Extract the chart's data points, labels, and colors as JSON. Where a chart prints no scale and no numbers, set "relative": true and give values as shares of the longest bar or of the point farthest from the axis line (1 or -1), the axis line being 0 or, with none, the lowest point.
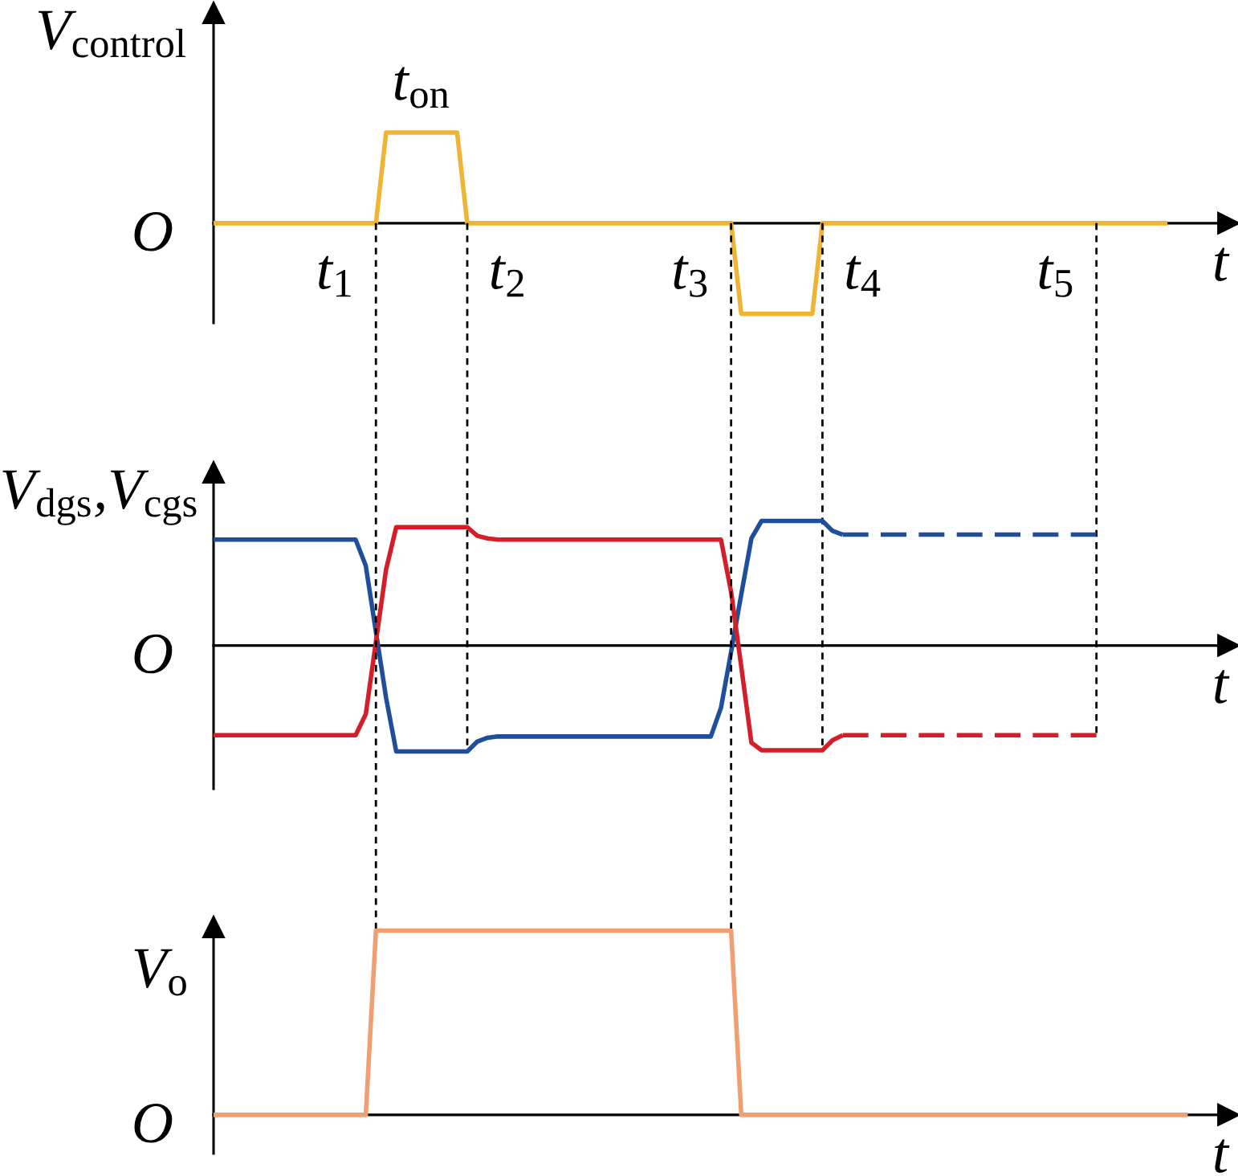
{
  "chart_data": [
    {
      "type": "line",
      "relative": true,
      "ylabel": "V$_{control}$",
      "xlabel": "t",
      "tick_labels": "x",
      "categories": [
        null,
        null,
        null,
        null,
        null,
        null,
        null,
        null,
        null,
        null,
        null,
        null,
        "t$_{1}$",
        null,
        null,
        null,
        null,
        null,
        null,
        null,
        null,
        null,
        null,
        null,
        null,
        null,
        null,
        null,
        null,
        "t$_{2}$",
        null,
        null,
        null,
        null,
        null,
        null,
        null,
        null,
        null,
        null,
        null,
        null,
        null,
        null,
        null,
        null,
        null,
        "t$_{3}$",
        null,
        null,
        null,
        null,
        null,
        null,
        null,
        null,
        null,
        null,
        null,
        null,
        null,
        null,
        null,
        null,
        "t$_{4}$",
        null,
        null,
        null,
        null,
        null,
        null,
        null,
        null,
        null,
        null,
        null,
        null,
        null,
        null,
        null,
        null,
        null,
        null,
        "t$_{5}$",
        null,
        null,
        null,
        null,
        null,
        null,
        null,
        null,
        null,
        null,
        null,
        null,
        null
      ],
      "series": [
        {
          "color": "#efb436",
          "values": [
            0,
            0,
            0,
            0,
            0,
            0,
            0,
            0,
            0,
            0,
            0,
            0,
            0,
            0,
            0,
            0,
            0,
            1,
            1,
            1,
            1,
            1,
            1,
            1,
            1,
            0,
            0,
            0,
            0,
            0,
            0,
            0,
            0,
            0,
            0,
            0,
            0,
            0,
            0,
            0,
            0,
            0,
            0,
            0,
            0,
            0,
            0,
            0,
            0,
            0,
            0,
            0,
            -1,
            -1,
            -1,
            -1,
            -1,
            -1,
            -1,
            -1,
            0,
            0,
            0,
            0,
            0,
            0,
            0,
            0,
            0,
            0,
            0,
            0,
            0,
            0,
            0,
            0,
            0,
            0,
            0,
            0,
            0,
            0,
            0,
            0,
            0,
            0,
            0,
            0,
            0,
            0,
            0,
            0,
            0,
            0,
            0,
            null,
            null
          ]
        }
      ],
      "annotations": [
        "O",
        {
          "text": "t$_{on}$",
          "y": 1
        }
      ]
    },
    {
      "type": "line",
      "relative": true,
      "ylabel": "V$_{dgs}$,V$_{cgs}$",
      "xlabel": "t",
      "categories": [
        null,
        null,
        null,
        null,
        null,
        null,
        null,
        null,
        null,
        null,
        null,
        null,
        null,
        null,
        null,
        null,
        null,
        null,
        null,
        null,
        null,
        null,
        null,
        null,
        null,
        null,
        null,
        null,
        null,
        null,
        null,
        null,
        null,
        null,
        null,
        null,
        null,
        null,
        null,
        null,
        null,
        null,
        null,
        null,
        null,
        null,
        null,
        null,
        null,
        null,
        null,
        null,
        null,
        null,
        null,
        null,
        null,
        null,
        null,
        null,
        null,
        null,
        null,
        null,
        null,
        null,
        null,
        null,
        null,
        null,
        null,
        null,
        null,
        null,
        null,
        null,
        null,
        null,
        null,
        null,
        null,
        null,
        null,
        null,
        null,
        null,
        null,
        null,
        null,
        null,
        null,
        null,
        null,
        null,
        null,
        null,
        null
      ],
      "series": [
        {
          "color": "#1f4e9b",
          "line_style": "solid",
          "values": [
            0.85,
            0.85,
            0.85,
            0.85,
            0.85,
            0.85,
            0.85,
            0.85,
            0.85,
            0.85,
            0.85,
            0.85,
            0.85,
            0.85,
            0.85,
            0.64,
            0.11,
            -0.42,
            -0.85,
            -0.85,
            -0.85,
            -0.85,
            -0.85,
            -0.85,
            -0.85,
            -0.85,
            -0.77,
            -0.74,
            -0.73,
            -0.73,
            -0.73,
            -0.73,
            -0.73,
            -0.73,
            -0.73,
            -0.73,
            -0.73,
            -0.73,
            -0.73,
            -0.73,
            -0.73,
            -0.73,
            -0.73,
            -0.73,
            -0.73,
            -0.73,
            -0.73,
            -0.73,
            -0.73,
            -0.73,
            -0.5,
            -0.05,
            0.41,
            0.86,
            1.0,
            1.0,
            1.0,
            1.0,
            1.0,
            1.0,
            1.0,
            0.92,
            0.89,
            null,
            null,
            null,
            null,
            null,
            null,
            null,
            null,
            null,
            null,
            null,
            null,
            null,
            null,
            null,
            null,
            null,
            null,
            null,
            null,
            null,
            null,
            null,
            null,
            null,
            null,
            null,
            null,
            null,
            null,
            null,
            null,
            null,
            null
          ]
        },
        {
          "color": "#1f4e9b",
          "line_style": "dashed",
          "values": [
            null,
            null,
            null,
            null,
            null,
            null,
            null,
            null,
            null,
            null,
            null,
            null,
            null,
            null,
            null,
            null,
            null,
            null,
            null,
            null,
            null,
            null,
            null,
            null,
            null,
            null,
            null,
            null,
            null,
            null,
            null,
            null,
            null,
            null,
            null,
            null,
            null,
            null,
            null,
            null,
            null,
            null,
            null,
            null,
            null,
            null,
            null,
            null,
            null,
            null,
            null,
            null,
            null,
            null,
            null,
            null,
            null,
            null,
            null,
            null,
            null,
            null,
            0.89,
            0.89,
            0.89,
            0.89,
            0.89,
            0.89,
            0.89,
            0.89,
            0.89,
            0.89,
            0.89,
            0.89,
            0.89,
            0.89,
            0.89,
            0.89,
            0.89,
            0.89,
            0.89,
            0.89,
            0.89,
            0.89,
            0.89,
            0.89,
            0.89,
            0.89,
            null,
            null,
            null,
            null,
            null,
            null,
            null,
            null,
            null
          ]
        },
        {
          "color": "#d41f2b",
          "line_style": "solid",
          "values": [
            -0.72,
            -0.72,
            -0.72,
            -0.72,
            -0.72,
            -0.72,
            -0.72,
            -0.72,
            -0.72,
            -0.72,
            -0.72,
            -0.72,
            -0.72,
            -0.72,
            -0.72,
            -0.55,
            0.03,
            0.61,
            0.95,
            0.95,
            0.95,
            0.95,
            0.95,
            0.95,
            0.95,
            0.95,
            0.88,
            0.86,
            0.85,
            0.85,
            0.85,
            0.85,
            0.85,
            0.85,
            0.85,
            0.85,
            0.85,
            0.85,
            0.85,
            0.85,
            0.85,
            0.85,
            0.85,
            0.85,
            0.85,
            0.85,
            0.85,
            0.85,
            0.85,
            0.85,
            0.85,
            0.43,
            -0.17,
            -0.78,
            -0.84,
            -0.84,
            -0.84,
            -0.84,
            -0.84,
            -0.84,
            -0.84,
            -0.76,
            -0.72,
            null,
            null,
            null,
            null,
            null,
            null,
            null,
            null,
            null,
            null,
            null,
            null,
            null,
            null,
            null,
            null,
            null,
            null,
            null,
            null,
            null,
            null,
            null,
            null,
            null,
            null,
            null,
            null,
            null,
            null,
            null,
            null,
            null,
            null
          ]
        },
        {
          "color": "#d41f2b",
          "line_style": "dashed",
          "values": [
            null,
            null,
            null,
            null,
            null,
            null,
            null,
            null,
            null,
            null,
            null,
            null,
            null,
            null,
            null,
            null,
            null,
            null,
            null,
            null,
            null,
            null,
            null,
            null,
            null,
            null,
            null,
            null,
            null,
            null,
            null,
            null,
            null,
            null,
            null,
            null,
            null,
            null,
            null,
            null,
            null,
            null,
            null,
            null,
            null,
            null,
            null,
            null,
            null,
            null,
            null,
            null,
            null,
            null,
            null,
            null,
            null,
            null,
            null,
            null,
            null,
            null,
            -0.72,
            -0.72,
            -0.72,
            -0.72,
            -0.72,
            -0.72,
            -0.72,
            -0.72,
            -0.72,
            -0.72,
            -0.72,
            -0.72,
            -0.72,
            -0.72,
            -0.72,
            -0.72,
            -0.72,
            -0.72,
            -0.72,
            -0.72,
            -0.72,
            -0.72,
            -0.72,
            -0.72,
            -0.72,
            -0.72,
            null,
            null,
            null,
            null,
            null,
            null,
            null,
            null,
            null
          ]
        }
      ],
      "annotations": [
        "O"
      ]
    },
    {
      "type": "line",
      "relative": true,
      "ylabel": "V$_{o}$",
      "xlabel": "t",
      "categories": [
        null,
        null,
        null,
        null,
        null,
        null,
        null,
        null,
        null,
        null,
        null,
        null,
        null,
        null,
        null,
        null,
        null,
        null,
        null,
        null,
        null,
        null,
        null,
        null,
        null,
        null,
        null,
        null,
        null,
        null,
        null,
        null,
        null,
        null,
        null,
        null,
        null,
        null,
        null,
        null,
        null,
        null,
        null,
        null,
        null,
        null,
        null,
        null,
        null,
        null,
        null,
        null,
        null,
        null,
        null,
        null,
        null,
        null,
        null,
        null,
        null,
        null,
        null,
        null,
        null,
        null,
        null,
        null,
        null,
        null,
        null,
        null,
        null,
        null,
        null,
        null,
        null,
        null,
        null,
        null,
        null,
        null,
        null,
        null,
        null,
        null,
        null,
        null,
        null,
        null,
        null,
        null,
        null,
        null,
        null,
        null,
        null
      ],
      "series": [
        {
          "color": "#f0a070",
          "values": [
            0,
            0,
            0,
            0,
            0,
            0,
            0,
            0,
            0,
            0,
            0,
            0,
            0,
            0,
            0,
            0,
            1,
            1,
            1,
            1,
            1,
            1,
            1,
            1,
            1,
            1,
            1,
            1,
            1,
            1,
            1,
            1,
            1,
            1,
            1,
            1,
            1,
            1,
            1,
            1,
            1,
            1,
            1,
            1,
            1,
            1,
            1,
            1,
            1,
            1,
            1,
            1,
            0,
            0,
            0,
            0,
            0,
            0,
            0,
            0,
            0,
            0,
            0,
            0,
            0,
            0,
            0,
            0,
            0,
            0,
            0,
            0,
            0,
            0,
            0,
            0,
            0,
            0,
            0,
            0,
            0,
            0,
            0,
            0,
            0,
            0,
            0,
            0,
            0,
            0,
            0,
            0,
            0,
            0,
            0,
            0,
            0
          ]
        }
      ],
      "annotations": [
        "O"
      ]
    }
  ]
}
